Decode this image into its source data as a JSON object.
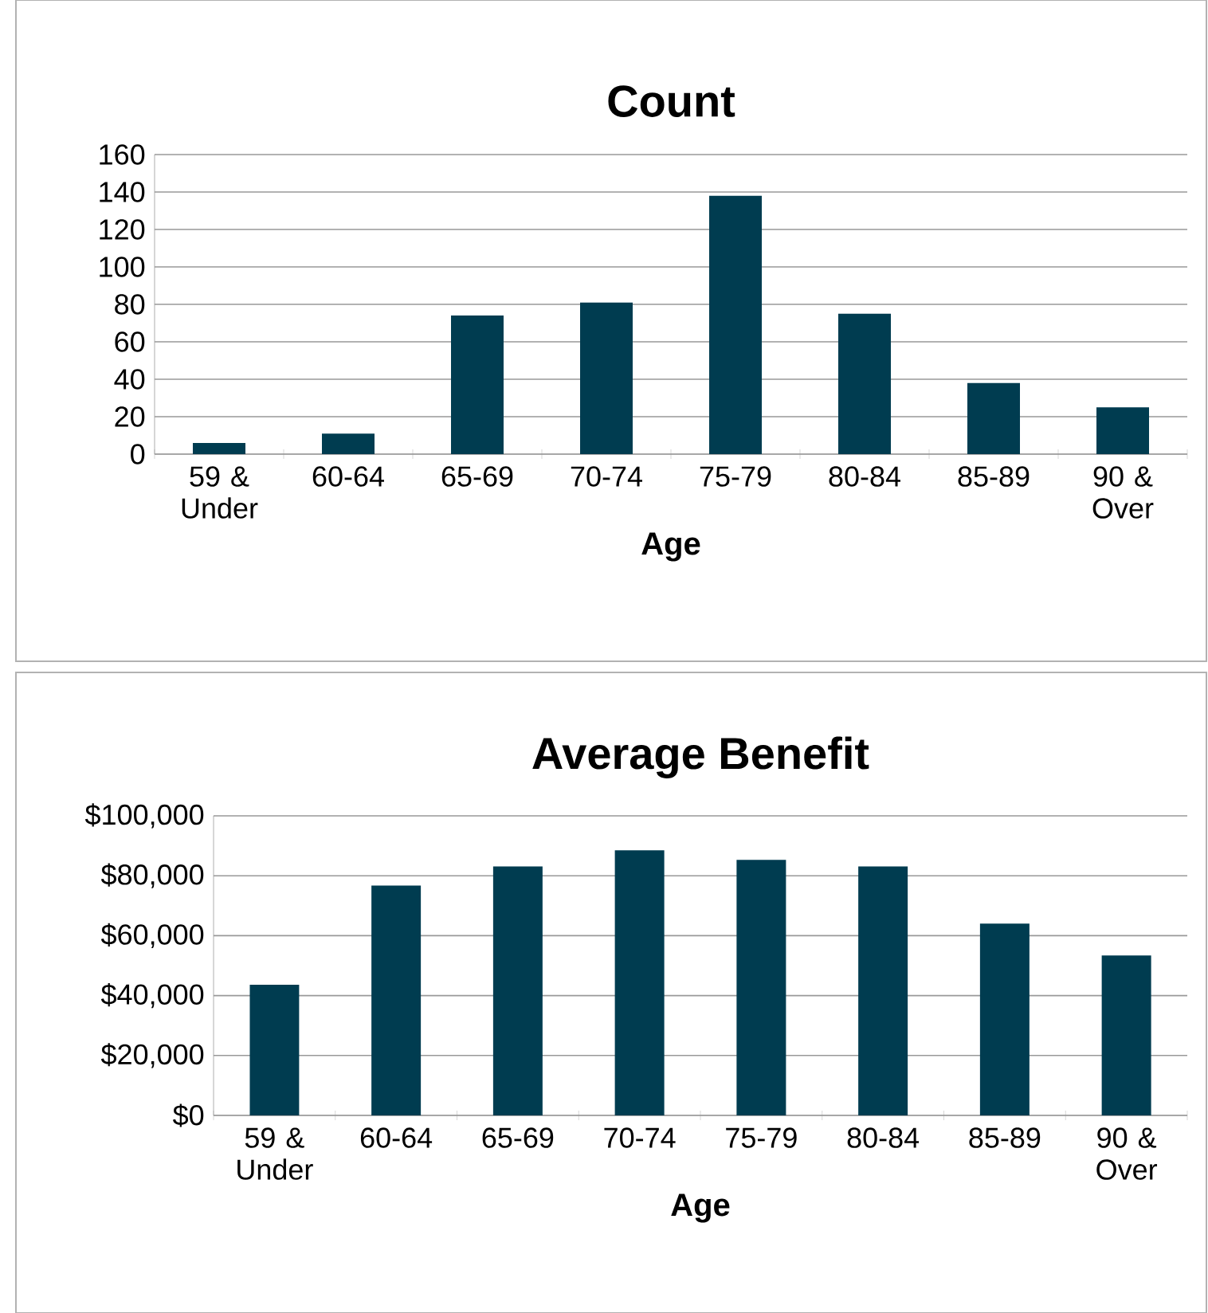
{
  "chart_data": [
    {
      "type": "bar",
      "title": "Count",
      "xlabel": "Age",
      "categories": [
        "59 & Under",
        "60-64",
        "65-69",
        "70-74",
        "75-79",
        "80-84",
        "85-89",
        "90 & Over"
      ],
      "values": [
        6,
        11,
        74,
        81,
        138,
        75,
        38,
        25
      ],
      "color": "#003c50",
      "ylim": [
        0,
        160
      ],
      "yticks": [
        0,
        20,
        40,
        60,
        80,
        100,
        120,
        140,
        160
      ],
      "grid": "y"
    },
    {
      "type": "bar",
      "title": "Average Benefit",
      "xlabel": "Age",
      "categories": [
        "59 & Under",
        "60-64",
        "65-69",
        "70-74",
        "75-79",
        "80-84",
        "85-89",
        "90 & Over"
      ],
      "values": [
        43600,
        76700,
        83100,
        88500,
        85300,
        83100,
        64000,
        53400
      ],
      "color": "#003c50",
      "ylim": [
        0,
        100000
      ],
      "yticks": [
        {
          "value": 0,
          "label": "$0"
        },
        {
          "value": 20000,
          "label": "$20,000"
        },
        {
          "value": 40000,
          "label": "$40,000"
        },
        {
          "value": 60000,
          "label": "$60,000"
        },
        {
          "value": 80000,
          "label": "$80,000"
        },
        {
          "value": 100000,
          "label": "$100,000"
        }
      ],
      "grid": "y"
    }
  ]
}
